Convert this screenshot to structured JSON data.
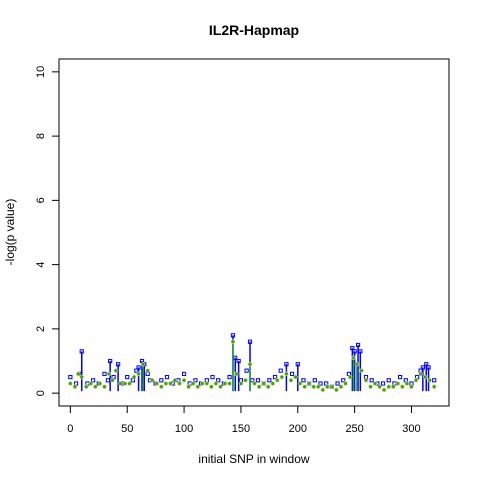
{
  "chart_data": {
    "type": "scatter",
    "title": "IL2R-Hapmap",
    "xlabel": "initial SNP in window",
    "ylabel": "-log(p value)",
    "xlim": [
      -10,
      333
    ],
    "ylim": [
      -0.4,
      10.4
    ],
    "xticks": [
      0,
      50,
      100,
      150,
      200,
      250,
      300
    ],
    "yticks": [
      0,
      2,
      4,
      6,
      8,
      10
    ],
    "grid": false,
    "legend": "none",
    "series": [
      {
        "marker": "square",
        "style": "points+spikes",
        "color": "#0000ff",
        "x": [
          0,
          5,
          8,
          10,
          15,
          20,
          25,
          30,
          33,
          35,
          38,
          42,
          45,
          50,
          55,
          58,
          60,
          63,
          65,
          68,
          70,
          75,
          80,
          85,
          90,
          95,
          100,
          105,
          110,
          115,
          120,
          125,
          130,
          135,
          140,
          143,
          145,
          148,
          150,
          155,
          158,
          160,
          165,
          170,
          175,
          180,
          185,
          190,
          195,
          200,
          205,
          210,
          215,
          220,
          225,
          230,
          235,
          240,
          245,
          248,
          250,
          253,
          255,
          260,
          265,
          270,
          275,
          280,
          285,
          290,
          295,
          300,
          305,
          308,
          310,
          313,
          315,
          320
        ],
        "y": [
          0.5,
          0.3,
          0.6,
          1.3,
          0.3,
          0.4,
          0.3,
          0.6,
          0.4,
          1.0,
          0.5,
          0.9,
          0.3,
          0.5,
          0.4,
          0.7,
          0.8,
          1.0,
          0.9,
          0.6,
          0.4,
          0.3,
          0.4,
          0.5,
          0.3,
          0.4,
          0.6,
          0.3,
          0.4,
          0.3,
          0.4,
          0.5,
          0.4,
          0.3,
          0.5,
          1.8,
          1.1,
          1.0,
          0.4,
          0.7,
          1.6,
          0.4,
          0.4,
          0.3,
          0.4,
          0.5,
          0.7,
          0.9,
          0.6,
          0.9,
          0.4,
          0.3,
          0.4,
          0.3,
          0.3,
          0.2,
          0.3,
          0.4,
          0.6,
          1.4,
          1.3,
          1.5,
          1.3,
          0.5,
          0.4,
          0.3,
          0.3,
          0.4,
          0.3,
          0.5,
          0.4,
          0.3,
          0.5,
          0.7,
          0.8,
          0.9,
          0.8,
          0.4
        ]
      },
      {
        "marker": "circle",
        "style": "points+spikes",
        "color": "#22aa22",
        "x": [
          0,
          4,
          7,
          10,
          14,
          18,
          22,
          26,
          30,
          34,
          37,
          40,
          44,
          48,
          52,
          56,
          60,
          64,
          68,
          72,
          76,
          80,
          84,
          88,
          92,
          96,
          100,
          104,
          108,
          112,
          116,
          120,
          124,
          128,
          132,
          136,
          140,
          143,
          146,
          150,
          154,
          158,
          162,
          166,
          170,
          174,
          178,
          182,
          186,
          190,
          194,
          198,
          202,
          206,
          210,
          214,
          218,
          222,
          226,
          230,
          234,
          238,
          242,
          246,
          249,
          252,
          256,
          260,
          264,
          268,
          272,
          276,
          280,
          284,
          288,
          292,
          296,
          300,
          304,
          308,
          312,
          316,
          320
        ],
        "y": [
          0.3,
          0.2,
          0.6,
          0.5,
          0.2,
          0.3,
          0.2,
          0.3,
          0.2,
          0.6,
          0.4,
          0.7,
          0.3,
          0.3,
          0.3,
          0.5,
          0.6,
          0.9,
          0.7,
          0.4,
          0.3,
          0.2,
          0.3,
          0.3,
          0.4,
          0.3,
          0.4,
          0.2,
          0.3,
          0.2,
          0.3,
          0.3,
          0.2,
          0.3,
          0.2,
          0.3,
          0.3,
          1.6,
          0.6,
          0.3,
          0.4,
          0.9,
          0.3,
          0.2,
          0.3,
          0.2,
          0.3,
          0.4,
          0.5,
          0.6,
          0.4,
          0.5,
          0.3,
          0.2,
          0.3,
          0.2,
          0.2,
          0.1,
          0.2,
          0.2,
          0.1,
          0.2,
          0.3,
          0.5,
          1.1,
          0.9,
          0.7,
          0.4,
          0.2,
          0.3,
          0.2,
          0.1,
          0.2,
          0.2,
          0.3,
          0.2,
          0.3,
          0.2,
          0.4,
          0.6,
          0.5,
          0.4,
          0.2
        ]
      }
    ]
  }
}
